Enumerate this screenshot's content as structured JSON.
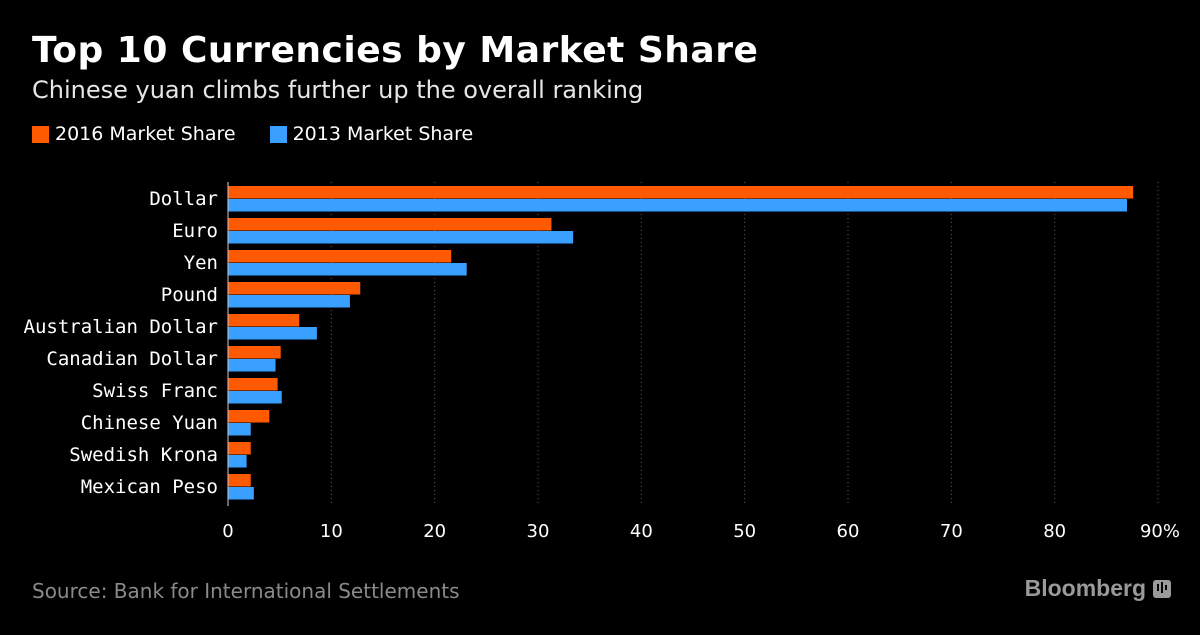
{
  "header": {
    "title": "Top 10 Currencies by Market Share",
    "subtitle": "Chinese yuan climbs further up the overall ranking"
  },
  "legend": {
    "items": [
      {
        "label": "2016 Market Share",
        "color": "#ff5a00"
      },
      {
        "label": "2013 Market Share",
        "color": "#3aa0ff"
      }
    ]
  },
  "chart_data": {
    "type": "bar",
    "orientation": "horizontal",
    "title": "Top 10 Currencies by Market Share",
    "subtitle": "Chinese yuan climbs further up the overall ranking",
    "categories": [
      "Dollar",
      "Euro",
      "Yen",
      "Pound",
      "Australian Dollar",
      "Canadian Dollar",
      "Swiss Franc",
      "Chinese Yuan",
      "Swedish Krona",
      "Mexican Peso"
    ],
    "series": [
      {
        "name": "2016 Market Share",
        "color": "#ff5a00",
        "values": [
          87.6,
          31.3,
          21.6,
          12.8,
          6.9,
          5.1,
          4.8,
          4.0,
          2.2,
          2.2
        ]
      },
      {
        "name": "2013 Market Share",
        "color": "#3aa0ff",
        "values": [
          87.0,
          33.4,
          23.1,
          11.8,
          8.6,
          4.6,
          5.2,
          2.2,
          1.8,
          2.5
        ]
      }
    ],
    "xlim": [
      0,
      90
    ],
    "xticks": [
      "0",
      "10",
      "20",
      "30",
      "40",
      "50",
      "60",
      "70",
      "80",
      "90%"
    ],
    "xtick_values": [
      0,
      10,
      20,
      30,
      40,
      50,
      60,
      70,
      80,
      90
    ],
    "grid": true,
    "xlabel": "",
    "ylabel": ""
  },
  "footer": {
    "source": "Source: Bank for International Settlements",
    "brand": "Bloomberg"
  }
}
